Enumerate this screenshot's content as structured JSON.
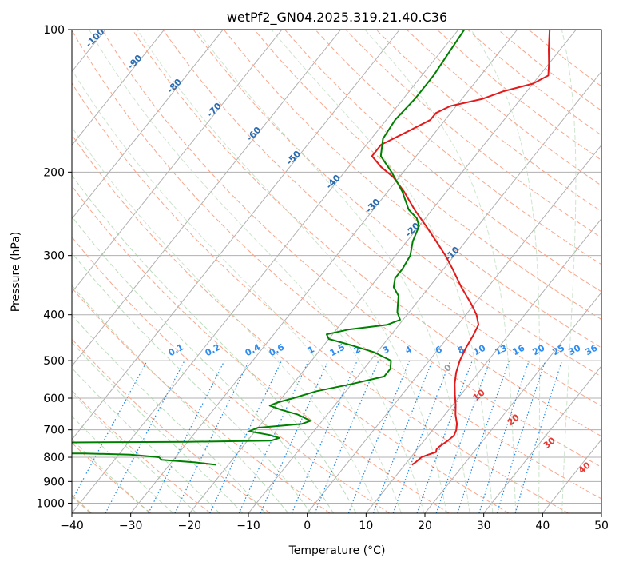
{
  "chart_data": {
    "type": "line",
    "subtype": "skew-t log-p diagram",
    "title": "wetPf2_GN04.2025.319.21.40.C36",
    "xlabel": "Temperature (°C)",
    "ylabel": "Pressure (hPa)",
    "xlim": [
      -40,
      50
    ],
    "ylim": [
      1050,
      100
    ],
    "y_scale": "log",
    "grid": true,
    "x_ticks": [
      "−40",
      "−30",
      "−20",
      "−10",
      "0",
      "10",
      "20",
      "30",
      "40",
      "50"
    ],
    "x_tick_values": [
      -40,
      -30,
      -20,
      -10,
      0,
      10,
      20,
      30,
      40,
      50
    ],
    "y_ticks": [
      "100",
      "200",
      "300",
      "400",
      "500",
      "600",
      "700",
      "800",
      "900",
      "1000"
    ],
    "y_tick_values": [
      100,
      200,
      300,
      400,
      500,
      600,
      700,
      800,
      900,
      1000
    ],
    "isotherm_labels": [
      "-100",
      "-90",
      "-80",
      "-70",
      "-60",
      "-50",
      "-40",
      "-30",
      "-20",
      "-10"
    ],
    "isotherm_label_temps": [
      -100,
      -90,
      -80,
      -70,
      -60,
      -50,
      -40,
      -30,
      -20,
      -10
    ],
    "mixing_ratio_labels": [
      "0.1",
      "0.2",
      "0.4",
      "0.6",
      "1",
      "1.5",
      "2",
      "3",
      "4",
      "6",
      "8",
      "10",
      "13",
      "16",
      "20",
      "25",
      "30",
      "36"
    ],
    "mixing_ratio_values": [
      0.1,
      0.2,
      0.4,
      0.6,
      1,
      1.5,
      2,
      3,
      4,
      6,
      8,
      10,
      13,
      16,
      20,
      25,
      30,
      36
    ],
    "moist_adiabat_labels": [
      "0",
      "10",
      "20",
      "30",
      "40"
    ],
    "moist_adiabat_values": [
      0,
      10,
      20,
      30,
      40
    ],
    "series": [
      {
        "name": "temperature",
        "color": "#e31a1c",
        "points": [
          {
            "p": 830,
            "t": 11.2
          },
          {
            "p": 820,
            "t": 11.5
          },
          {
            "p": 800,
            "t": 11.8
          },
          {
            "p": 790,
            "t": 12.6
          },
          {
            "p": 780,
            "t": 13.6
          },
          {
            "p": 770,
            "t": 13.3
          },
          {
            "p": 760,
            "t": 13.4
          },
          {
            "p": 740,
            "t": 14.0
          },
          {
            "p": 720,
            "t": 14.4
          },
          {
            "p": 700,
            "t": 14.0
          },
          {
            "p": 680,
            "t": 13.3
          },
          {
            "p": 650,
            "t": 11.8
          },
          {
            "p": 620,
            "t": 10.5
          },
          {
            "p": 590,
            "t": 9.0
          },
          {
            "p": 560,
            "t": 7.5
          },
          {
            "p": 530,
            "t": 6.2
          },
          {
            "p": 500,
            "t": 5.2
          },
          {
            "p": 470,
            "t": 4.5
          },
          {
            "p": 440,
            "t": 4.0
          },
          {
            "p": 420,
            "t": 3.5
          },
          {
            "p": 400,
            "t": 1.8
          },
          {
            "p": 380,
            "t": -0.5
          },
          {
            "p": 350,
            "t": -4.5
          },
          {
            "p": 320,
            "t": -8.5
          },
          {
            "p": 300,
            "t": -11.5
          },
          {
            "p": 280,
            "t": -15.0
          },
          {
            "p": 260,
            "t": -18.8
          },
          {
            "p": 240,
            "t": -23.0
          },
          {
            "p": 220,
            "t": -27.2
          },
          {
            "p": 205,
            "t": -31.0
          },
          {
            "p": 195,
            "t": -34.5
          },
          {
            "p": 185,
            "t": -37.5
          },
          {
            "p": 175,
            "t": -37.5
          },
          {
            "p": 165,
            "t": -35.0
          },
          {
            "p": 155,
            "t": -32.5
          },
          {
            "p": 150,
            "t": -32.5
          },
          {
            "p": 145,
            "t": -31.0
          },
          {
            "p": 140,
            "t": -26.5
          },
          {
            "p": 135,
            "t": -24.0
          },
          {
            "p": 130,
            "t": -20.0
          },
          {
            "p": 125,
            "t": -18.5
          },
          {
            "p": 118,
            "t": -20.0
          },
          {
            "p": 110,
            "t": -22.0
          },
          {
            "p": 100,
            "t": -24.5
          }
        ]
      },
      {
        "name": "dewpoint",
        "color": "#008000",
        "points": [
          {
            "p": 830,
            "t": -22.0
          },
          {
            "p": 820,
            "t": -26.0
          },
          {
            "p": 810,
            "t": -32.0
          },
          {
            "p": 800,
            "t": -32.8
          },
          {
            "p": 790,
            "t": -38.0
          },
          {
            "p": 785,
            "t": -46.0
          },
          {
            "p": 785,
            "t": -52.0
          },
          {
            "p": 745,
            "t": -55.0
          },
          {
            "p": 742,
            "t": -30.0
          },
          {
            "p": 738,
            "t": -16.0
          },
          {
            "p": 728,
            "t": -15.0
          },
          {
            "p": 718,
            "t": -17.0
          },
          {
            "p": 705,
            "t": -21.0
          },
          {
            "p": 693,
            "t": -20.0
          },
          {
            "p": 680,
            "t": -13.0
          },
          {
            "p": 670,
            "t": -12.0
          },
          {
            "p": 650,
            "t": -15.0
          },
          {
            "p": 635,
            "t": -18.5
          },
          {
            "p": 622,
            "t": -21.0
          },
          {
            "p": 612,
            "t": -20.0
          },
          {
            "p": 600,
            "t": -18.0
          },
          {
            "p": 580,
            "t": -15.0
          },
          {
            "p": 560,
            "t": -10.0
          },
          {
            "p": 540,
            "t": -5.5
          },
          {
            "p": 520,
            "t": -5.5
          },
          {
            "p": 500,
            "t": -6.5
          },
          {
            "p": 480,
            "t": -10.5
          },
          {
            "p": 465,
            "t": -15.0
          },
          {
            "p": 450,
            "t": -20.0
          },
          {
            "p": 440,
            "t": -21.0
          },
          {
            "p": 430,
            "t": -18.0
          },
          {
            "p": 420,
            "t": -12.0
          },
          {
            "p": 410,
            "t": -10.5
          },
          {
            "p": 395,
            "t": -12.0
          },
          {
            "p": 380,
            "t": -13.0
          },
          {
            "p": 365,
            "t": -14.0
          },
          {
            "p": 350,
            "t": -16.0
          },
          {
            "p": 335,
            "t": -17.0
          },
          {
            "p": 320,
            "t": -17.0
          },
          {
            "p": 300,
            "t": -17.5
          },
          {
            "p": 280,
            "t": -19.0
          },
          {
            "p": 260,
            "t": -20.0
          },
          {
            "p": 250,
            "t": -21.5
          },
          {
            "p": 240,
            "t": -24.0
          },
          {
            "p": 220,
            "t": -27.5
          },
          {
            "p": 200,
            "t": -32.0
          },
          {
            "p": 185,
            "t": -36.0
          },
          {
            "p": 170,
            "t": -38.0
          },
          {
            "p": 155,
            "t": -38.5
          },
          {
            "p": 140,
            "t": -38.0
          },
          {
            "p": 125,
            "t": -38.0
          },
          {
            "p": 112,
            "t": -38.5
          },
          {
            "p": 100,
            "t": -39.0
          }
        ]
      }
    ]
  }
}
